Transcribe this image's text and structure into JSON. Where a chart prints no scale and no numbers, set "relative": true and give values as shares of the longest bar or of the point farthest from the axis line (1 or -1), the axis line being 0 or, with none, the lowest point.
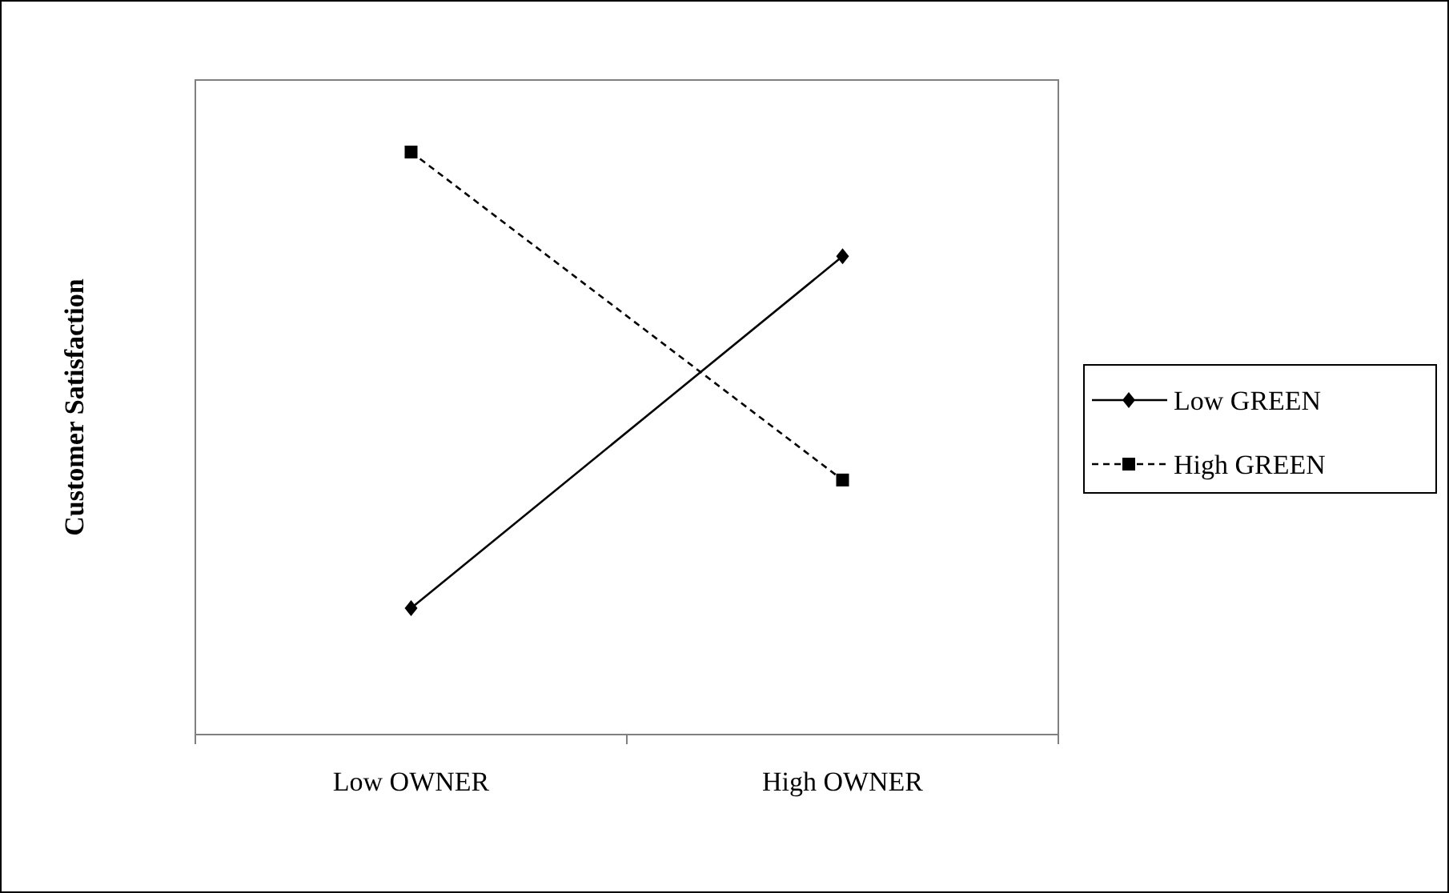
{
  "chart_data": {
    "type": "line",
    "ylabel": "Customer Satisfaction",
    "categories": [
      "Low OWNER",
      "High OWNER"
    ],
    "relative": true,
    "legend": "right",
    "series": [
      {
        "name": "Low GREEN",
        "color": "#000000",
        "values": [
          0.217,
          0.821
        ],
        "marker": "diamond",
        "line_style": "solid"
      },
      {
        "name": "High GREEN",
        "color": "#000000",
        "values": [
          1,
          0.437
        ],
        "marker": "square",
        "line_style": "dashed"
      }
    ]
  }
}
